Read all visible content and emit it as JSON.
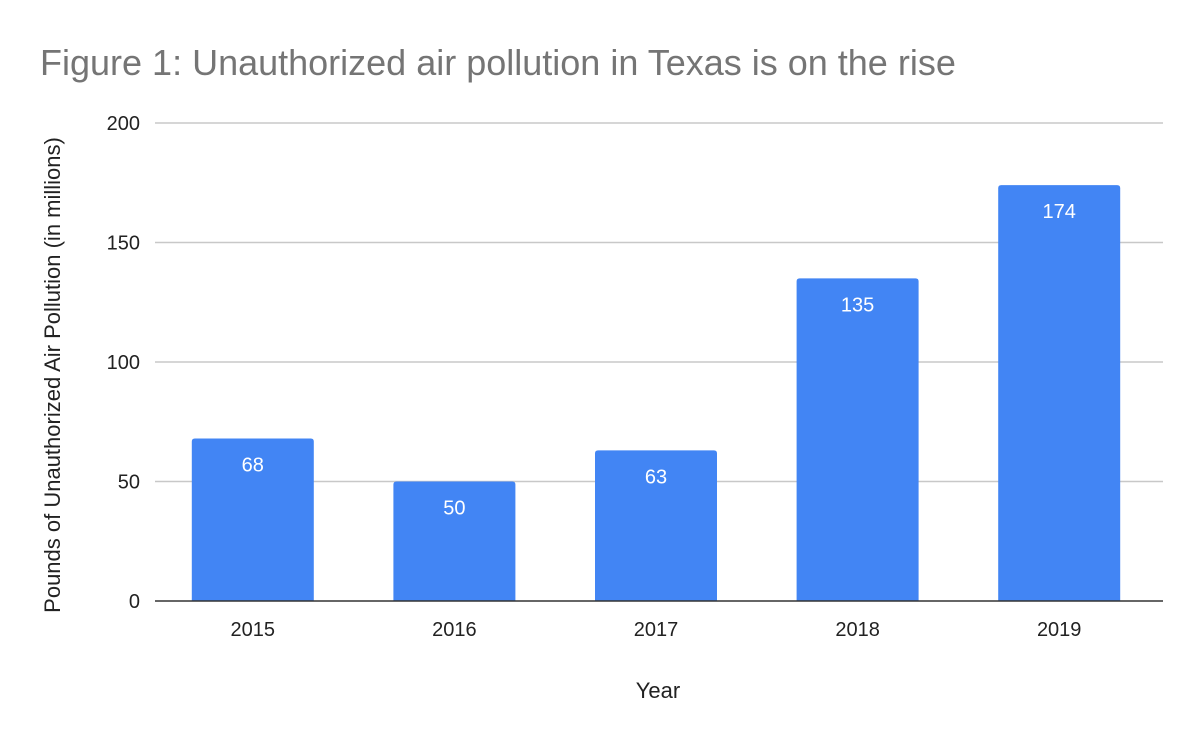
{
  "chart_data": {
    "type": "bar",
    "title": "Figure 1: Unauthorized air pollution in Texas is on the rise",
    "xlabel": "Year",
    "ylabel": "Pounds of Unauthorized Air Pollution (in millions)",
    "categories": [
      "2015",
      "2016",
      "2017",
      "2018",
      "2019"
    ],
    "values": [
      68,
      50,
      63,
      135,
      174
    ],
    "data_labels": [
      "68",
      "50",
      "63",
      "135",
      "174"
    ],
    "ylim": [
      0,
      200
    ],
    "yticks": [
      0,
      50,
      100,
      150,
      200
    ],
    "ytick_labels": [
      "0",
      "50",
      "100",
      "150",
      "200"
    ],
    "grid": true,
    "legend": "none",
    "bar_color": "#4285f4",
    "title_color": "#757575",
    "grid_color": "#c8c8c8"
  }
}
